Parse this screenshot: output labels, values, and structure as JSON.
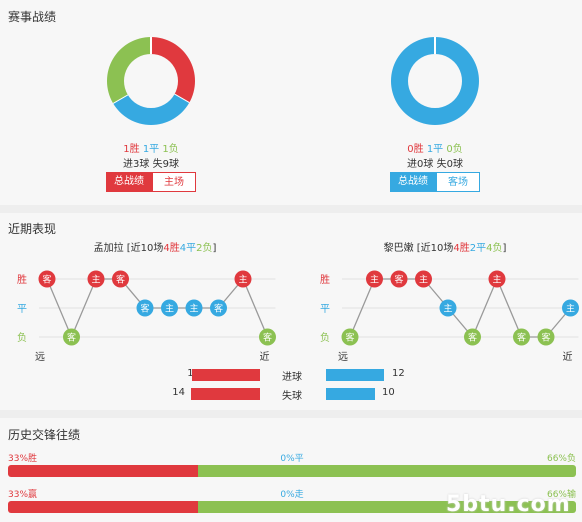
{
  "colors": {
    "win": "#e0393e",
    "draw": "#36a9e1",
    "loss": "#8cc152",
    "home": "#e0393e",
    "away": "#36a9e1",
    "text": "#333333"
  },
  "section1": {
    "title": "赛事战绩",
    "left": {
      "win": "1胜",
      "draw": "1平",
      "loss": "1负",
      "goals": "进3球  失9球",
      "tabs": [
        "总战绩",
        "主场"
      ],
      "active_tab": "总战绩",
      "donut": [
        {
          "label": "胜",
          "value": 1
        },
        {
          "label": "平",
          "value": 1
        },
        {
          "label": "负",
          "value": 1
        }
      ]
    },
    "right": {
      "win": "0胜",
      "draw": "1平",
      "loss": "0负",
      "goals": "进0球  失0球",
      "tabs": [
        "总战绩",
        "客场"
      ],
      "active_tab": "总战绩",
      "donut": [
        {
          "label": "胜",
          "value": 0
        },
        {
          "label": "平",
          "value": 1
        },
        {
          "label": "负",
          "value": 0
        }
      ]
    }
  },
  "section2": {
    "title": "近期表现",
    "row_labels": {
      "win": "胜",
      "draw": "平",
      "loss": "负"
    },
    "far": "远",
    "near": "近",
    "left": {
      "team": "孟加拉",
      "pre": " [近10场",
      "w": "4胜",
      "d": "4平",
      "l": "2负",
      "post": "]",
      "games": [
        {
          "side": "客",
          "result": "W"
        },
        {
          "side": "客",
          "result": "L"
        },
        {
          "side": "主",
          "result": "W"
        },
        {
          "side": "客",
          "result": "W"
        },
        {
          "side": "客",
          "result": "D"
        },
        {
          "side": "主",
          "result": "D"
        },
        {
          "side": "主",
          "result": "D"
        },
        {
          "side": "客",
          "result": "D"
        },
        {
          "side": "主",
          "result": "W"
        },
        {
          "side": "客",
          "result": "L"
        }
      ]
    },
    "right": {
      "team": "黎巴嫩",
      "pre": " [近10场",
      "w": "4胜",
      "d": "2平",
      "l": "4负",
      "post": "]",
      "games": [
        {
          "side": "客",
          "result": "L"
        },
        {
          "side": "主",
          "result": "W"
        },
        {
          "side": "客",
          "result": "W"
        },
        {
          "side": "主",
          "result": "W"
        },
        {
          "side": "主",
          "result": "D"
        },
        {
          "side": "客",
          "result": "L"
        },
        {
          "side": "主",
          "result": "W"
        },
        {
          "side": "客",
          "result": "L"
        },
        {
          "side": "客",
          "result": "L"
        },
        {
          "side": "主",
          "result": "D"
        }
      ]
    },
    "stats": [
      {
        "label": "进球",
        "left": 11,
        "right": 12
      },
      {
        "label": "失球",
        "left": 14,
        "right": 10
      }
    ]
  },
  "section3": {
    "title": "历史交锋往绩",
    "rows": [
      {
        "left_label": "33%胜",
        "mid_label": "0%平",
        "right_label": "66%负",
        "left_pct": 33,
        "right_pct": 66
      },
      {
        "left_label": "33%赢",
        "mid_label": "0%走",
        "right_label": "66%输",
        "left_pct": 33,
        "right_pct": 66
      }
    ]
  },
  "watermark": "5btu.com"
}
